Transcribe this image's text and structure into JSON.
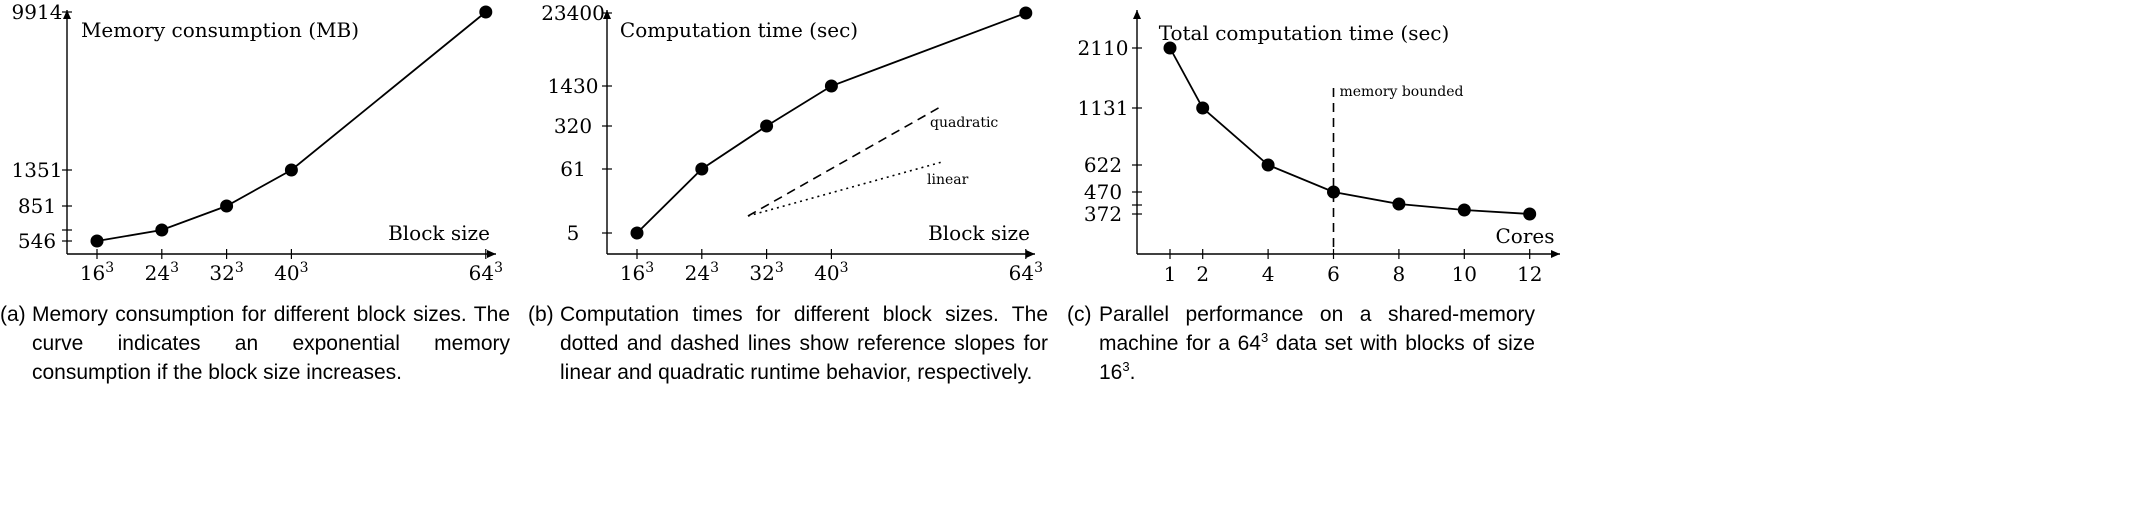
{
  "chart_data": [
    {
      "type": "line",
      "id": "a",
      "title": "Memory consumption (MB)",
      "xlabel": "Block size",
      "categories": [
        "16^3",
        "24^3",
        "32^3",
        "40^3",
        "64^3"
      ],
      "x": [
        16,
        24,
        32,
        40,
        64
      ],
      "values": [
        546,
        650,
        851,
        1351,
        9914
      ],
      "yticks": [
        "546",
        "851",
        "1351",
        "9914"
      ],
      "scale": "nonlinear (ticks at data values)",
      "caption_tag": "(a)",
      "caption": "Memory consumption for different block sizes. The curve indicates an exponential memory consumption if the block size increases."
    },
    {
      "type": "line",
      "id": "b",
      "title": "Computation time (sec)",
      "xlabel": "Block size",
      "categories": [
        "16^3",
        "24^3",
        "32^3",
        "40^3",
        "64^3"
      ],
      "x": [
        16,
        24,
        32,
        40,
        64
      ],
      "values": [
        5,
        61,
        320,
        1430,
        23400
      ],
      "yticks": [
        "5",
        "61",
        "320",
        "1430",
        "23400"
      ],
      "scale": "log",
      "reference_lines": [
        {
          "label": "quadratic",
          "style": "dashed"
        },
        {
          "label": "linear",
          "style": "dotted"
        }
      ],
      "caption_tag": "(b)",
      "caption": "Computation times for different block sizes. The dotted and dashed lines show reference slopes for linear and quadratic runtime behavior, respectively."
    },
    {
      "type": "line",
      "id": "c",
      "title": "Total computation time (sec)",
      "xlabel": "Cores",
      "x": [
        1,
        2,
        4,
        6,
        8,
        10,
        12
      ],
      "values": [
        2110,
        1131,
        622,
        470,
        420,
        395,
        372
      ],
      "yticks": [
        "2110",
        "1131",
        "622",
        "470",
        "372"
      ],
      "xticks": [
        "1",
        "2",
        "4",
        "6",
        "8",
        "10",
        "12"
      ],
      "annotation": {
        "label": "memory bounded",
        "x": 6,
        "style": "dashed"
      },
      "caption_tag": "(c)",
      "caption_before": "Parallel performance on a shared-memory machine for a 64",
      "caption_sup1": "3",
      "caption_middle": " data set with blocks of size 16",
      "caption_sup2": "3",
      "caption_after": "."
    }
  ]
}
